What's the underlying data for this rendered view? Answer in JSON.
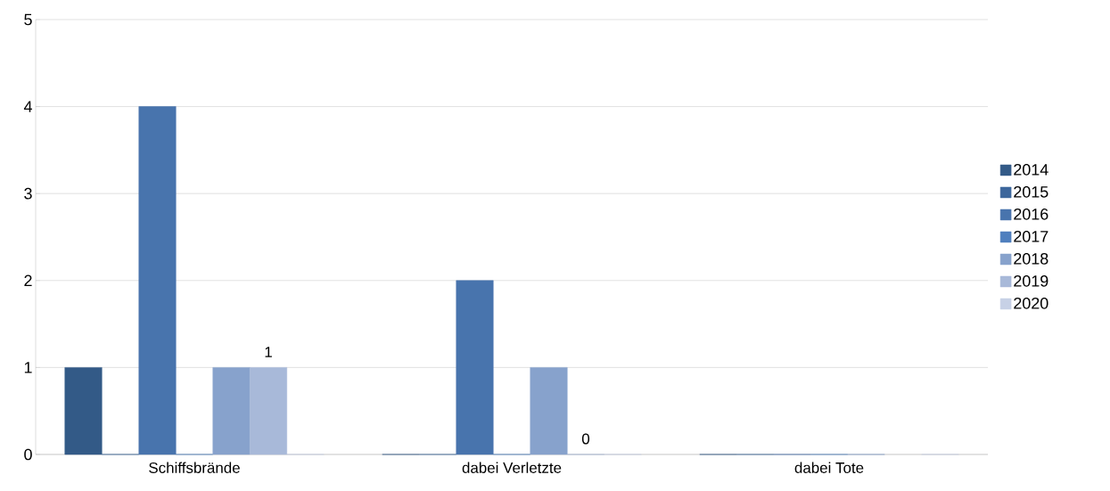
{
  "chart_data": {
    "type": "bar",
    "categories": [
      "Schiffsbrände",
      "dabei Verletzte",
      "dabei Tote"
    ],
    "series": [
      {
        "name": "2014",
        "color": "#335a87",
        "values": [
          1,
          0,
          0
        ]
      },
      {
        "name": "2015",
        "color": "#3d679c",
        "values": [
          0,
          0,
          0
        ]
      },
      {
        "name": "2016",
        "color": "#4874ad",
        "values": [
          4,
          2,
          0
        ]
      },
      {
        "name": "2017",
        "color": "#4f7fbe",
        "values": [
          0,
          0,
          0
        ]
      },
      {
        "name": "2018",
        "color": "#87a2cc",
        "values": [
          1,
          1,
          0
        ]
      },
      {
        "name": "2019",
        "color": "#a8b9d9",
        "values": [
          1,
          0,
          null
        ],
        "value_labels": [
          "1",
          "0",
          null
        ]
      },
      {
        "name": "2020",
        "color": "#c7d1e6",
        "values": [
          0,
          0,
          0
        ]
      }
    ],
    "ylim": [
      0,
      5
    ],
    "yticks": [
      0,
      1,
      2,
      3,
      4,
      5
    ],
    "grid": "y",
    "legend": "right"
  }
}
